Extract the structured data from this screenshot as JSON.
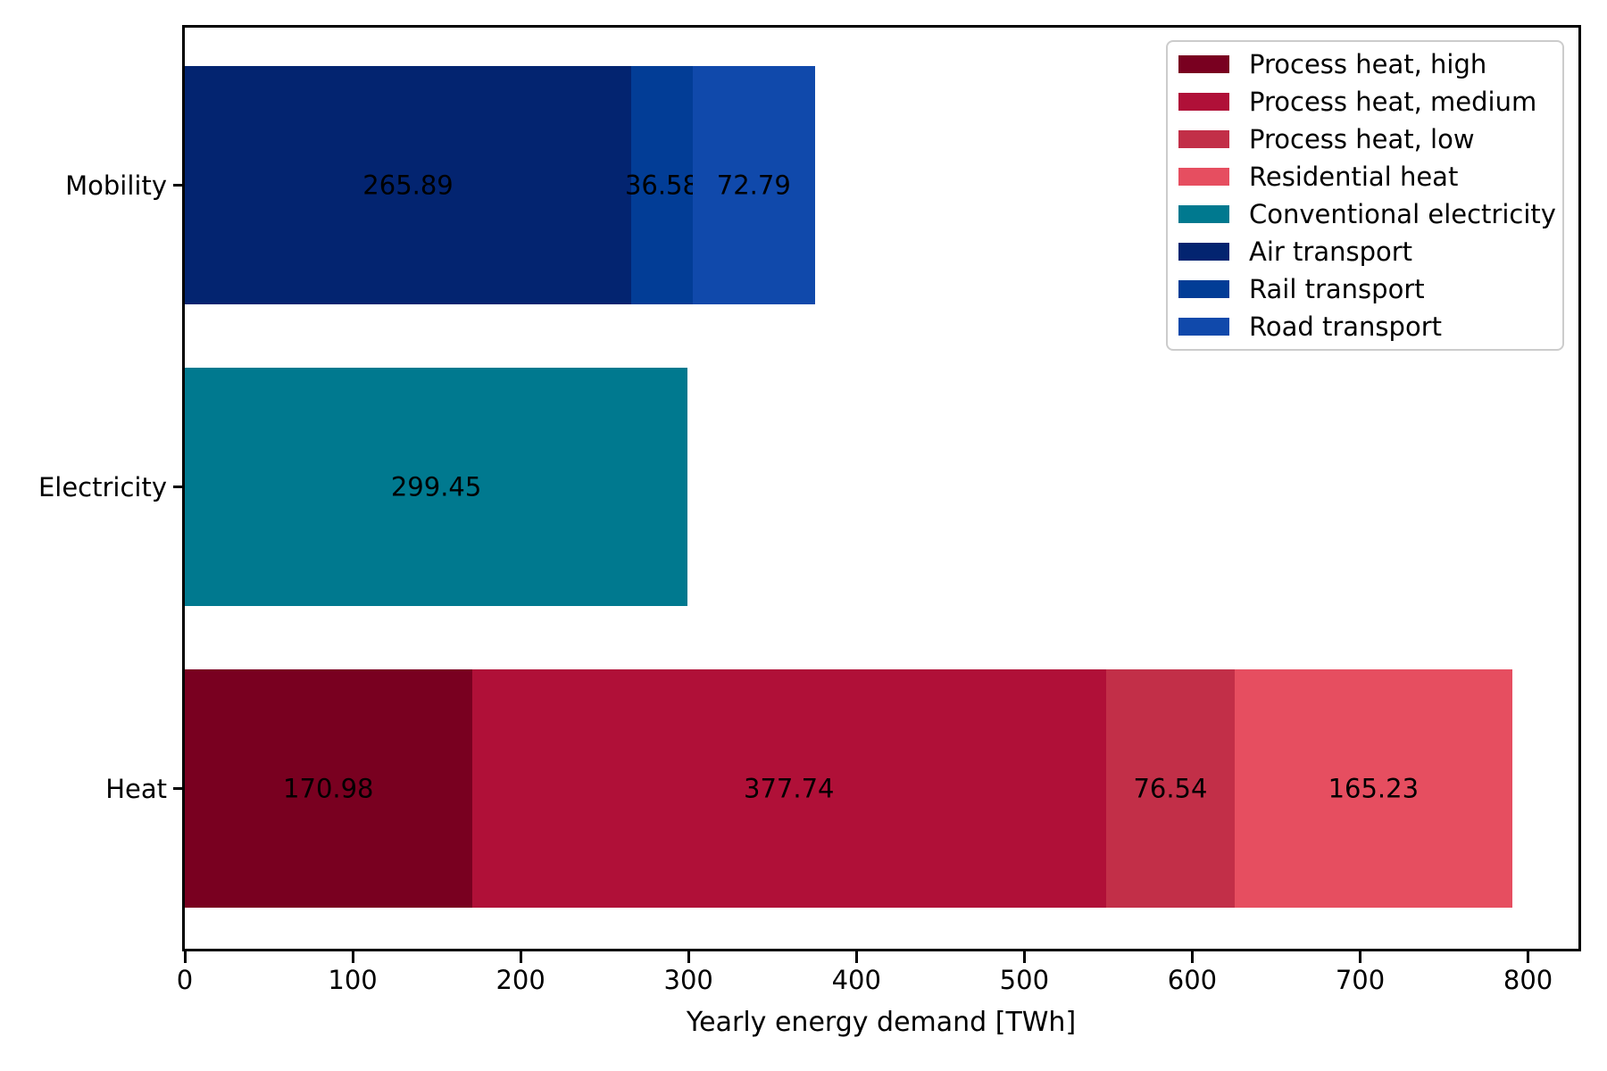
{
  "chart_data": {
    "type": "bar",
    "orientation": "horizontal-stacked",
    "categories": [
      "Mobility",
      "Electricity",
      "Heat"
    ],
    "series": [
      {
        "name": "Process heat, high",
        "color": "#790020",
        "values": [
          0,
          0,
          170.98
        ]
      },
      {
        "name": "Process heat, medium",
        "color": "#b01038",
        "values": [
          0,
          0,
          377.74
        ]
      },
      {
        "name": "Process heat, low",
        "color": "#c22f48",
        "values": [
          0,
          0,
          76.54
        ]
      },
      {
        "name": "Residential heat",
        "color": "#e64e60",
        "values": [
          0,
          0,
          165.23
        ]
      },
      {
        "name": "Conventional electricity",
        "color": "#00798f",
        "values": [
          0,
          299.45,
          0
        ]
      },
      {
        "name": "Air transport",
        "color": "#032470",
        "values": [
          265.89,
          0,
          0
        ]
      },
      {
        "name": "Rail transport",
        "color": "#023d96",
        "values": [
          36.58,
          0,
          0
        ]
      },
      {
        "name": "Road transport",
        "color": "#1049ab",
        "values": [
          72.79,
          0,
          0
        ]
      }
    ],
    "bar_value_labels": [
      "265.89",
      "36.58",
      "72.79",
      "299.45",
      "170.98",
      "377.74",
      "76.54",
      "165.23"
    ],
    "xlabel": "Yearly energy demand [TWh]",
    "xticks": [
      "0",
      "100",
      "200",
      "300",
      "400",
      "500",
      "600",
      "700",
      "800"
    ],
    "xlim": [
      0,
      830
    ],
    "legend_position": "upper right",
    "grid": false,
    "text_color": "#000000",
    "spine_color": "#000000",
    "legend_border_color": "#cccccc"
  }
}
